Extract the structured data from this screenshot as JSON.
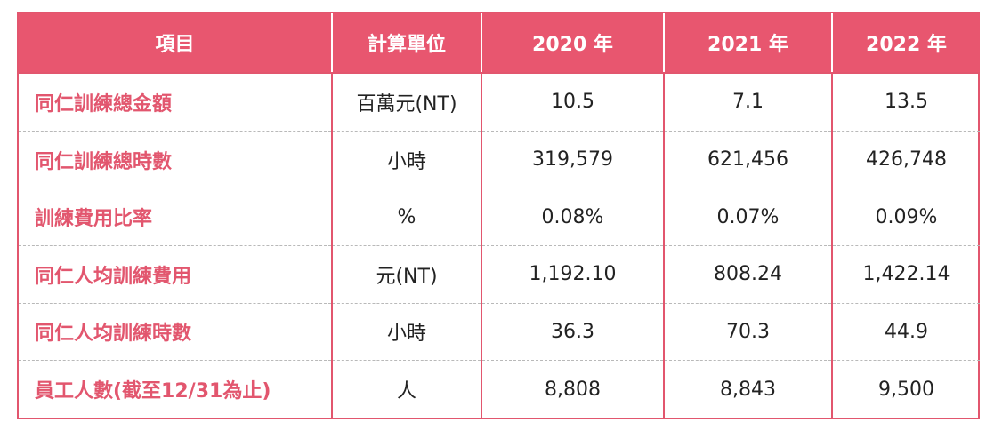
{
  "table": {
    "headers": [
      "項目",
      "計算單位",
      "2020 年",
      "2021 年",
      "2022 年"
    ],
    "rows": [
      {
        "item": "同仁訓練總金額",
        "unit": "百萬元(NT)",
        "y2020": "10.5",
        "y2021": "7.1",
        "y2022": "13.5"
      },
      {
        "item": "同仁訓練總時數",
        "unit": "小時",
        "y2020": "319,579",
        "y2021": "621,456",
        "y2022": "426,748"
      },
      {
        "item": "訓練費用比率",
        "unit": "%",
        "y2020": "0.08%",
        "y2021": "0.07%",
        "y2022": "0.09%"
      },
      {
        "item": "同仁人均訓練費用",
        "unit": "元(NT)",
        "y2020": "1,192.10",
        "y2021": "808.24",
        "y2022": "1,422.14"
      },
      {
        "item": "同仁人均訓練時數",
        "unit": "小時",
        "y2020": "36.3",
        "y2021": "70.3",
        "y2022": "44.9"
      },
      {
        "item": "員工人數(截至12/31為止)",
        "unit": "人",
        "y2020": "8,808",
        "y2021": "8,843",
        "y2022": "9,500"
      }
    ]
  },
  "colors": {
    "header_bg": "#e8566f",
    "accent": "#e2566e",
    "header_text": "#ffffff",
    "body_text": "#222222",
    "row_divider": "#b9b9b9"
  }
}
